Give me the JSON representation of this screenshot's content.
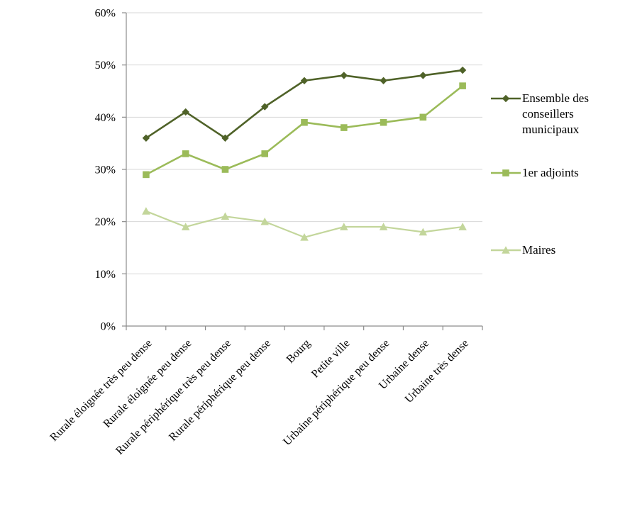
{
  "chart_data": {
    "type": "line",
    "title": "",
    "categories": [
      "Rurale éloignée très peu dense",
      "Rurale éloignée peu dense",
      "Rurale périphérique très peu dense",
      "Rurale périphérique peu dense",
      "Bourg",
      "Petite ville",
      "Urbaine périphérique peu dense",
      "Urbaine dense",
      "Urbaine très dense"
    ],
    "series": [
      {
        "name": "Ensemble des conseillers municipaux",
        "marker": "diamond",
        "color": "#4F6228",
        "line_width": 2.6,
        "values": [
          36,
          41,
          36,
          42,
          47,
          48,
          47,
          48,
          49
        ]
      },
      {
        "name": "1er adjoints",
        "marker": "square",
        "color": "#9BBB59",
        "line_width": 2.6,
        "values": [
          29,
          33,
          30,
          33,
          39,
          38,
          39,
          40,
          46
        ]
      },
      {
        "name": "Maires",
        "marker": "triangle",
        "color": "#C3D69B",
        "line_width": 2.2,
        "values": [
          22,
          19,
          21,
          20,
          17,
          19,
          19,
          18,
          19
        ]
      }
    ],
    "ylim": [
      0,
      60
    ],
    "ytick_step": 10,
    "ytick_labels": [
      "0%",
      "10%",
      "20%",
      "30%",
      "40%",
      "50%",
      "60%"
    ],
    "grid": true,
    "legend_position": "right",
    "colors": {
      "grid": "#D7D7D7",
      "axis": "#8C8C8C",
      "text": "#000000",
      "background": "#FFFFFF"
    }
  }
}
